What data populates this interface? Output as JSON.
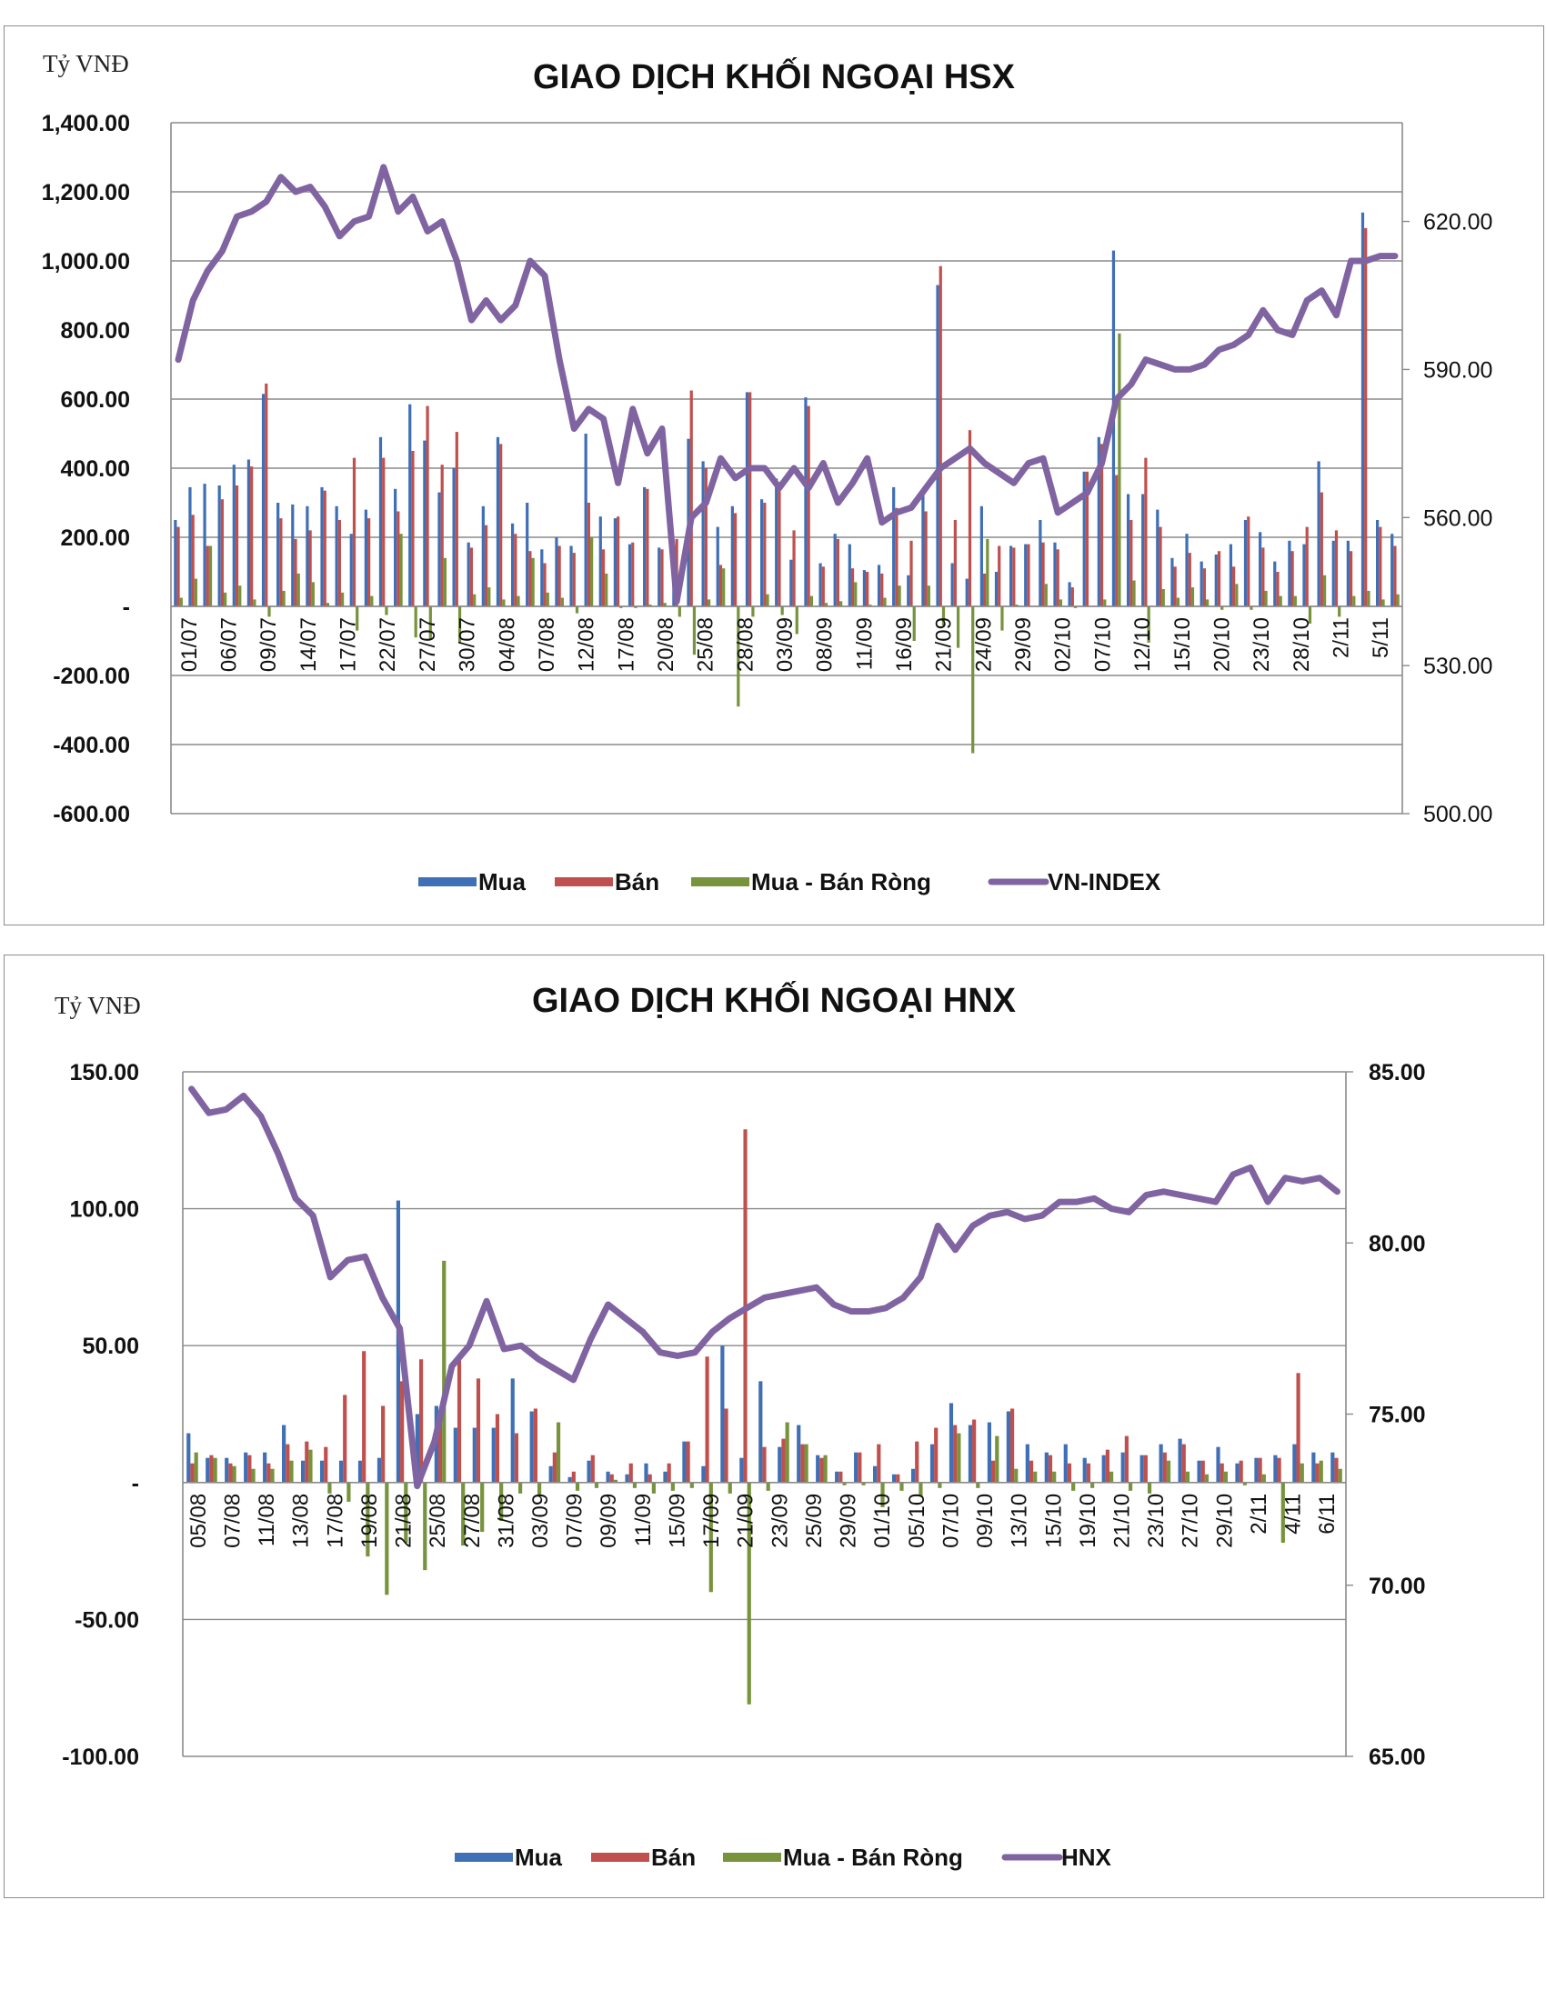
{
  "chart_data": [
    {
      "type": "bar",
      "title": "GIAO DỊCH KHỐI NGOẠI HSX",
      "ylabel": "Tỷ VNĐ",
      "ylim": [
        -600,
        1400
      ],
      "yticks": [
        "1,400.00",
        "1,200.00",
        "1,000.00",
        "800.00",
        "600.00",
        "400.00",
        "200.00",
        "-",
        "-200.00",
        "-400.00",
        "-600.00"
      ],
      "y2lim": [
        500,
        640
      ],
      "y2ticks": [
        "620.00",
        "590.00",
        "560.00",
        "530.00",
        "500.00"
      ],
      "grid": true,
      "legend_position": "bottom",
      "x_labels": [
        "01/07",
        "06/07",
        "09/07",
        "14/07",
        "17/07",
        "22/07",
        "27/07",
        "30/07",
        "04/08",
        "07/08",
        "12/08",
        "17/08",
        "20/08",
        "25/08",
        "28/08",
        "03/09",
        "08/09",
        "11/09",
        "16/09",
        "21/09",
        "24/09",
        "29/09",
        "02/10",
        "07/10",
        "12/10",
        "15/10",
        "20/10",
        "23/10",
        "28/10",
        "2/11",
        "5/11"
      ],
      "series": [
        {
          "name": "Mua",
          "kind": "bar",
          "color": "#3f6fb5",
          "values": [
            250,
            345,
            355,
            350,
            410,
            425,
            615,
            300,
            295,
            290,
            345,
            290,
            210,
            280,
            490,
            340,
            585,
            480,
            330,
            400,
            185,
            290,
            490,
            240,
            300,
            165,
            200,
            175,
            500,
            260,
            255,
            180,
            345,
            170,
            165,
            485,
            420,
            230,
            290,
            620,
            310,
            370,
            135,
            605,
            125,
            210,
            180,
            105,
            120,
            345,
            90,
            335,
            930,
            125,
            80,
            290,
            100,
            175,
            180,
            250,
            185,
            70,
            390,
            490,
            1030,
            325,
            325,
            280,
            140,
            210,
            130,
            150,
            180,
            250,
            215,
            130,
            190,
            180,
            420,
            190,
            190,
            1140,
            250,
            210
          ]
        },
        {
          "name": "Bán",
          "kind": "bar",
          "color": "#c0504d",
          "values": [
            230,
            265,
            175,
            310,
            350,
            405,
            645,
            255,
            195,
            220,
            335,
            250,
            430,
            255,
            430,
            275,
            450,
            580,
            410,
            505,
            170,
            235,
            470,
            210,
            160,
            125,
            175,
            155,
            300,
            165,
            260,
            185,
            340,
            165,
            195,
            625,
            400,
            120,
            270,
            620,
            300,
            360,
            220,
            580,
            115,
            195,
            110,
            100,
            95,
            285,
            190,
            275,
            985,
            250,
            510,
            95,
            175,
            170,
            180,
            185,
            165,
            55,
            390,
            470,
            380,
            250,
            430,
            230,
            115,
            155,
            110,
            160,
            115,
            260,
            170,
            100,
            160,
            230,
            330,
            220,
            160,
            1095,
            230,
            175
          ]
        },
        {
          "name": "Mua - Bán Ròng",
          "kind": "bar",
          "color": "#77933c",
          "values": [
            25,
            80,
            175,
            40,
            60,
            20,
            -30,
            45,
            95,
            70,
            10,
            40,
            -70,
            30,
            -25,
            210,
            -90,
            -95,
            140,
            -105,
            35,
            55,
            20,
            30,
            140,
            40,
            25,
            -20,
            200,
            95,
            -5,
            -5,
            5,
            10,
            -30,
            -140,
            20,
            110,
            -290,
            -30,
            35,
            -25,
            -80,
            30,
            10,
            15,
            70,
            5,
            25,
            60,
            -100,
            60,
            -55,
            -120,
            -425,
            195,
            -70,
            5,
            0,
            65,
            20,
            -5,
            0,
            20,
            790,
            75,
            -105,
            50,
            25,
            55,
            20,
            -10,
            65,
            -10,
            45,
            30,
            30,
            -50,
            90,
            -30,
            30,
            45,
            20,
            35
          ]
        },
        {
          "name": "VN-INDEX",
          "kind": "line",
          "color": "#8064a2",
          "values": [
            592,
            604,
            610,
            614,
            621,
            622,
            624,
            629,
            626,
            627,
            623,
            617,
            620,
            621,
            631,
            622,
            625,
            618,
            620,
            612,
            600,
            604,
            600,
            603,
            612,
            609,
            592,
            578,
            582,
            580,
            567,
            582,
            573,
            578,
            543,
            560,
            563,
            572,
            568,
            570,
            570,
            566,
            570,
            566,
            571,
            563,
            567,
            572,
            559,
            561,
            562,
            566,
            570,
            572,
            574,
            571,
            569,
            567,
            571,
            572,
            561,
            563,
            565,
            571,
            584,
            587,
            592,
            591,
            590,
            590,
            591,
            594,
            595,
            597,
            602,
            598,
            597,
            604,
            606,
            601,
            612,
            612,
            613,
            613
          ]
        }
      ]
    },
    {
      "type": "bar",
      "title": "GIAO DỊCH KHỐI NGOẠI HNX",
      "ylabel": "Tỷ VNĐ",
      "ylim": [
        -100,
        150
      ],
      "yticks": [
        "150.00",
        "100.00",
        "50.00",
        "-",
        "-50.00",
        "-100.00"
      ],
      "y2lim": [
        65,
        85
      ],
      "y2ticks": [
        "85.00",
        "80.00",
        "75.00",
        "70.00",
        "65.00"
      ],
      "grid": true,
      "legend_position": "bottom",
      "x_labels": [
        "05/08",
        "07/08",
        "11/08",
        "13/08",
        "17/08",
        "19/08",
        "21/08",
        "25/08",
        "27/08",
        "31/08",
        "03/09",
        "07/09",
        "09/09",
        "11/09",
        "15/09",
        "17/09",
        "21/09",
        "23/09",
        "25/09",
        "29/09",
        "01/10",
        "05/10",
        "07/10",
        "09/10",
        "13/10",
        "15/10",
        "19/10",
        "21/10",
        "23/10",
        "27/10",
        "29/10",
        "2/11",
        "4/11",
        "6/11"
      ],
      "series": [
        {
          "name": "Mua",
          "kind": "bar",
          "color": "#3f6fb5",
          "values": [
            18,
            9,
            9,
            11,
            11,
            21,
            8,
            8,
            8,
            8,
            9,
            103,
            25,
            28,
            20,
            20,
            20,
            38,
            26,
            6,
            2,
            8,
            4,
            3,
            7,
            4,
            15,
            6,
            50,
            9,
            37,
            13,
            21,
            10,
            4,
            11,
            6,
            3,
            5,
            14,
            29,
            21,
            22,
            26,
            14,
            11,
            14,
            9,
            10,
            11,
            10,
            14,
            16,
            8,
            13,
            7,
            9,
            10,
            14,
            11,
            11
          ]
        },
        {
          "name": "Bán",
          "kind": "bar",
          "color": "#c0504d",
          "values": [
            7,
            10,
            7,
            10,
            7,
            14,
            15,
            13,
            32,
            48,
            28,
            37,
            45,
            26,
            46,
            38,
            25,
            18,
            27,
            11,
            4,
            10,
            3,
            7,
            3,
            7,
            15,
            46,
            27,
            129,
            13,
            16,
            14,
            9,
            4,
            11,
            14,
            3,
            15,
            20,
            21,
            23,
            8,
            27,
            8,
            10,
            7,
            7,
            12,
            17,
            10,
            11,
            14,
            8,
            7,
            8,
            9,
            9,
            40,
            7,
            9
          ]
        },
        {
          "name": "Mua - Bán Ròng",
          "kind": "bar",
          "color": "#77933c",
          "values": [
            11,
            9,
            6,
            5,
            5,
            8,
            12,
            -4,
            -7,
            -27,
            -41,
            -22,
            -32,
            81,
            -23,
            -18,
            -14,
            -4,
            -5,
            22,
            -3,
            -2,
            1,
            -2,
            -4,
            -3,
            -2,
            -40,
            -4,
            -81,
            -3,
            22,
            14,
            10,
            -1,
            -1,
            -9,
            -3,
            -5,
            -2,
            18,
            -2,
            17,
            5,
            4,
            4,
            -3,
            -2,
            4,
            -3,
            -4,
            8,
            4,
            3,
            4,
            -1,
            3,
            -22,
            7,
            8,
            5
          ]
        },
        {
          "name": "HNX",
          "kind": "line",
          "color": "#8064a2",
          "values": [
            84.5,
            83.8,
            83.9,
            84.3,
            83.7,
            82.6,
            81.3,
            80.8,
            79.0,
            79.5,
            79.6,
            78.4,
            77.5,
            72.9,
            74.2,
            76.4,
            77.0,
            78.3,
            76.9,
            77.0,
            76.6,
            76.3,
            76.0,
            77.2,
            78.2,
            77.8,
            77.4,
            76.8,
            76.7,
            76.8,
            77.4,
            77.8,
            78.1,
            78.4,
            78.5,
            78.6,
            78.7,
            78.2,
            78.0,
            78.0,
            78.1,
            78.4,
            79.0,
            80.5,
            79.8,
            80.5,
            80.8,
            80.9,
            80.7,
            80.8,
            81.2,
            81.2,
            81.3,
            81.0,
            80.9,
            81.4,
            81.5,
            81.4,
            81.3,
            81.2,
            82.0,
            82.2,
            81.2,
            81.9,
            81.8,
            81.9,
            81.5
          ]
        }
      ]
    }
  ]
}
